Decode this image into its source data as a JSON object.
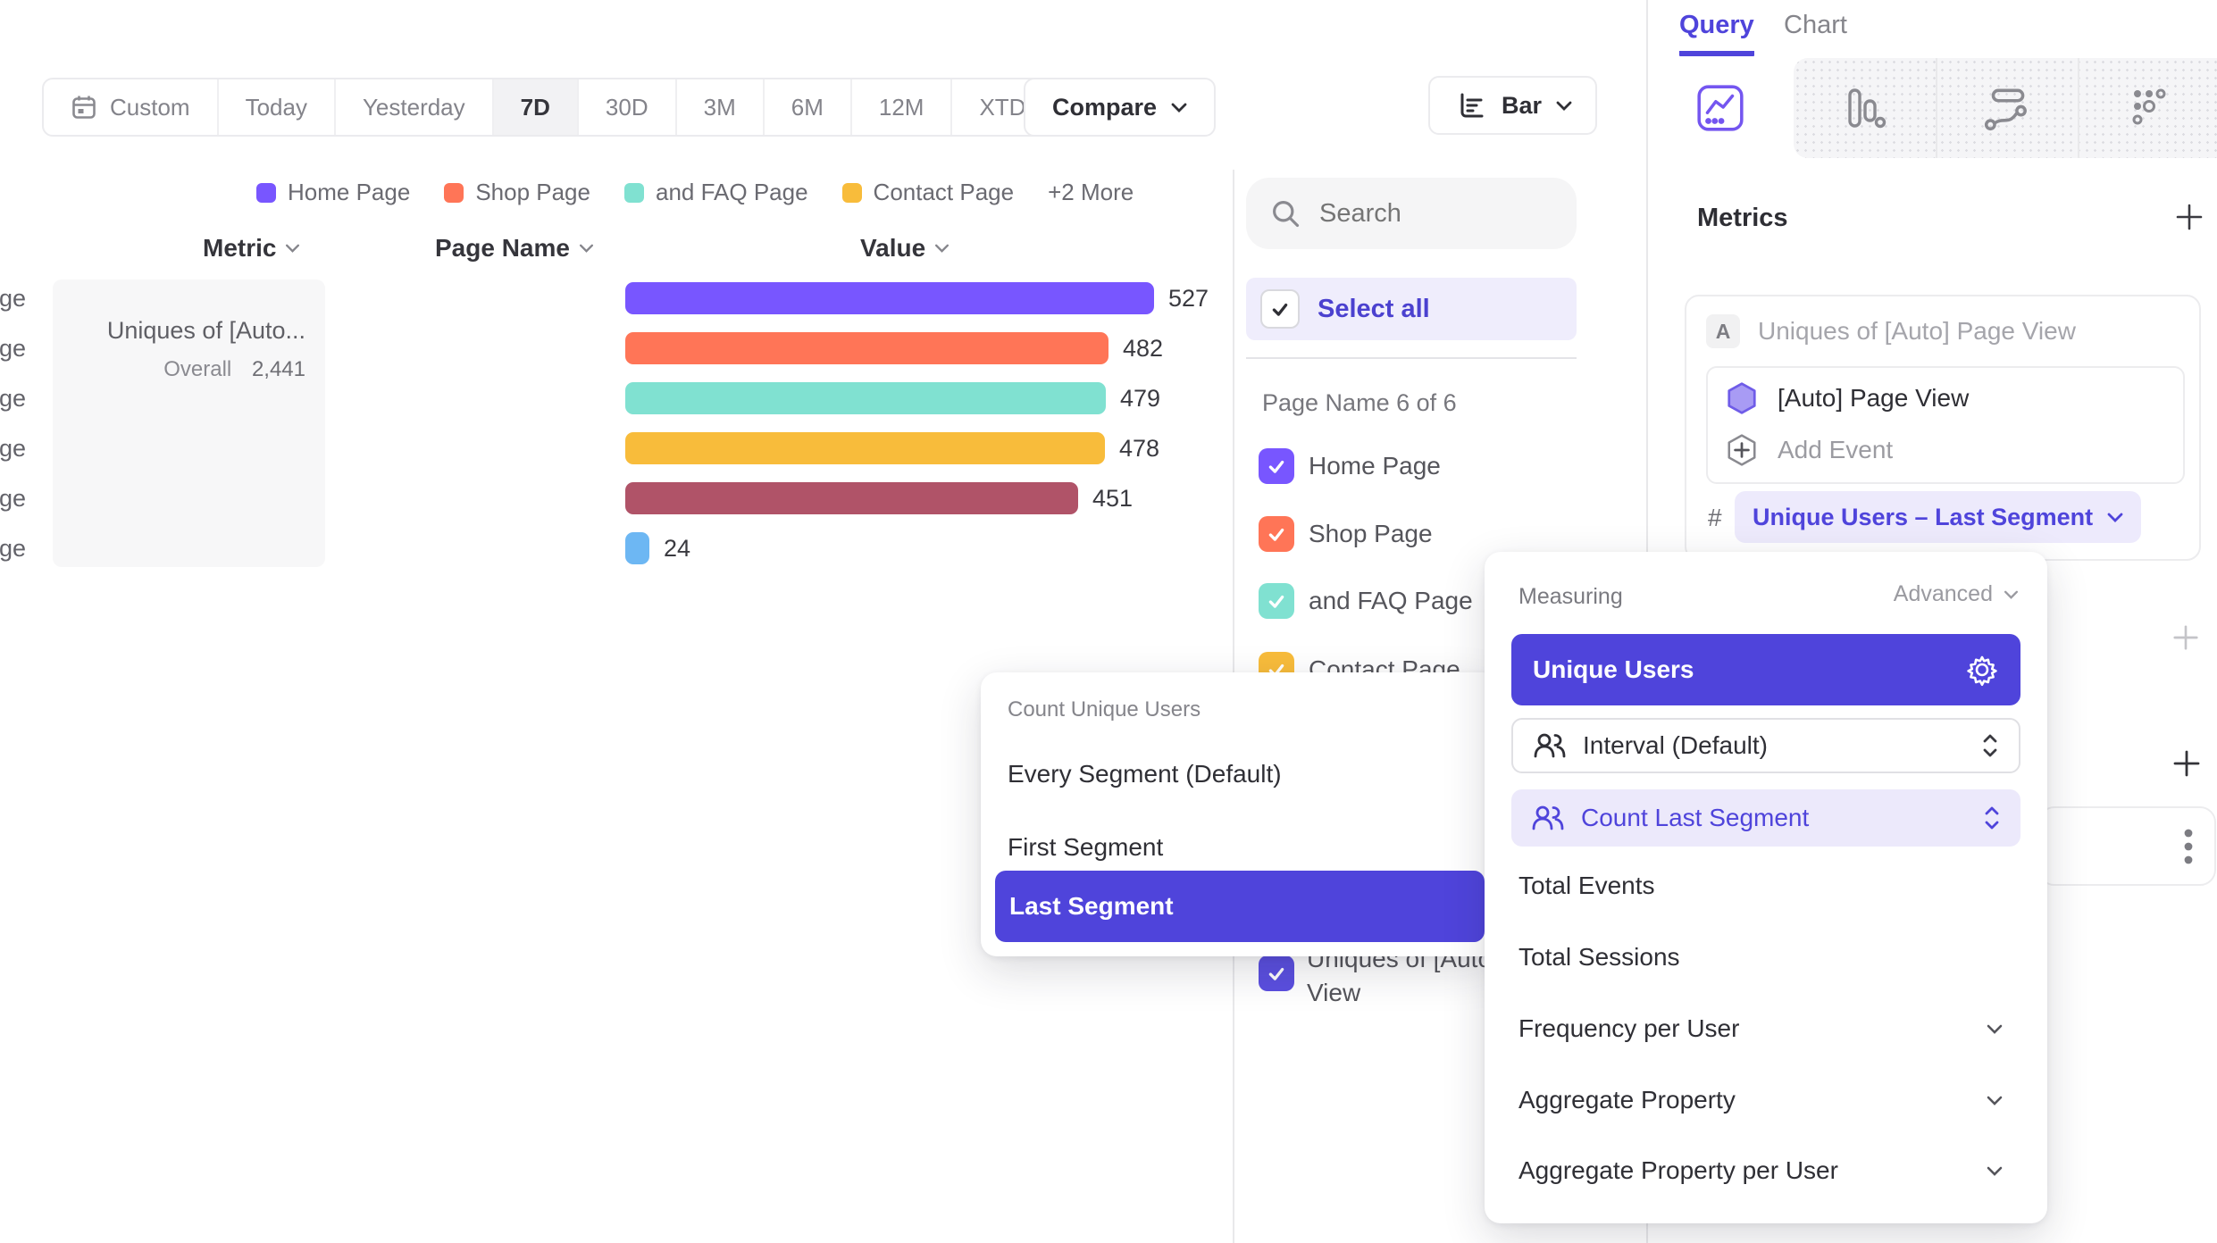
{
  "toolbar": {
    "date_ranges": [
      "Custom",
      "Today",
      "Yesterday",
      "7D",
      "30D",
      "3M",
      "6M",
      "12M",
      "XTD"
    ],
    "active_range": "7D",
    "compare_label": "Compare",
    "chart_type_label": "Bar"
  },
  "legend": {
    "items": [
      {
        "label": "Home Page",
        "color": "#7856FF"
      },
      {
        "label": "Shop Page",
        "color": "#FF7557"
      },
      {
        "label": "and FAQ Page",
        "color": "#80E1D1"
      },
      {
        "label": "Contact Page",
        "color": "#F8BC3B"
      }
    ],
    "more_label": "+2 More"
  },
  "table": {
    "columns": [
      "Metric",
      "Page Name",
      "Value"
    ]
  },
  "metric_card": {
    "title": "Uniques of [Auto...",
    "overall_label": "Overall",
    "overall_value": "2,441"
  },
  "chart_data": {
    "type": "bar",
    "orientation": "horizontal",
    "metric": "Uniques of [Auto] Page View",
    "overall_total": 2441,
    "categories": [
      "Home Page",
      "Shop Page",
      "and FAQ Page",
      "Contact Page",
      "About Us Page",
      "FAQ Page"
    ],
    "values": [
      527,
      482,
      479,
      478,
      451,
      24
    ],
    "colors": [
      "#7856FF",
      "#FF7557",
      "#80E1D1",
      "#F8BC3B",
      "#B05368",
      "#6DB7F3"
    ],
    "value_labels_shown": true,
    "legend_position": "top"
  },
  "filters": {
    "search_placeholder": "Search",
    "select_all_label": "Select all",
    "group_label": "Page Name 6 of 6",
    "items": [
      {
        "label": "Home Page",
        "color": "#7856FF",
        "checked": true
      },
      {
        "label": "Shop Page",
        "color": "#FF7557",
        "checked": true
      },
      {
        "label": "and FAQ Page",
        "color": "#80E1D1",
        "checked": true
      },
      {
        "label": "Contact Page",
        "color": "#F8BC3B",
        "checked": true
      }
    ],
    "bottom_item": {
      "label_line1": "Uniques of [Auto",
      "label_line2": "View",
      "color": "#5B4FE0",
      "checked": true
    }
  },
  "count_popup": {
    "title": "Count Unique Users",
    "options": [
      "Every Segment (Default)",
      "First Segment",
      "Last Segment"
    ],
    "selected": "Last Segment"
  },
  "measuring_popup": {
    "title": "Measuring",
    "advanced_label": "Advanced",
    "selected_option": "Unique Users",
    "sub_options": [
      {
        "label": "Interval (Default)",
        "selected": false
      },
      {
        "label": "Count Last Segment",
        "selected": true
      }
    ],
    "options": [
      "Total Events",
      "Total Sessions"
    ],
    "expandable_options": [
      "Frequency per User",
      "Aggregate Property",
      "Aggregate Property per User"
    ]
  },
  "query_panel": {
    "tabs": [
      "Query",
      "Chart"
    ],
    "active_tab": "Query",
    "metrics_heading": "Metrics",
    "metric": {
      "badge": "A",
      "title": "Uniques of [Auto] Page View",
      "event_name": "[Auto] Page View",
      "add_event_label": "Add Event",
      "hash_symbol": "#",
      "measurement_label": "Unique Users – Last Segment"
    }
  },
  "colors": {
    "accent": "#4F44DB",
    "accent_light_bg": "#ECE9FB",
    "select_all_bg": "#EFEDFC",
    "brand_purple": "#7856FF"
  }
}
